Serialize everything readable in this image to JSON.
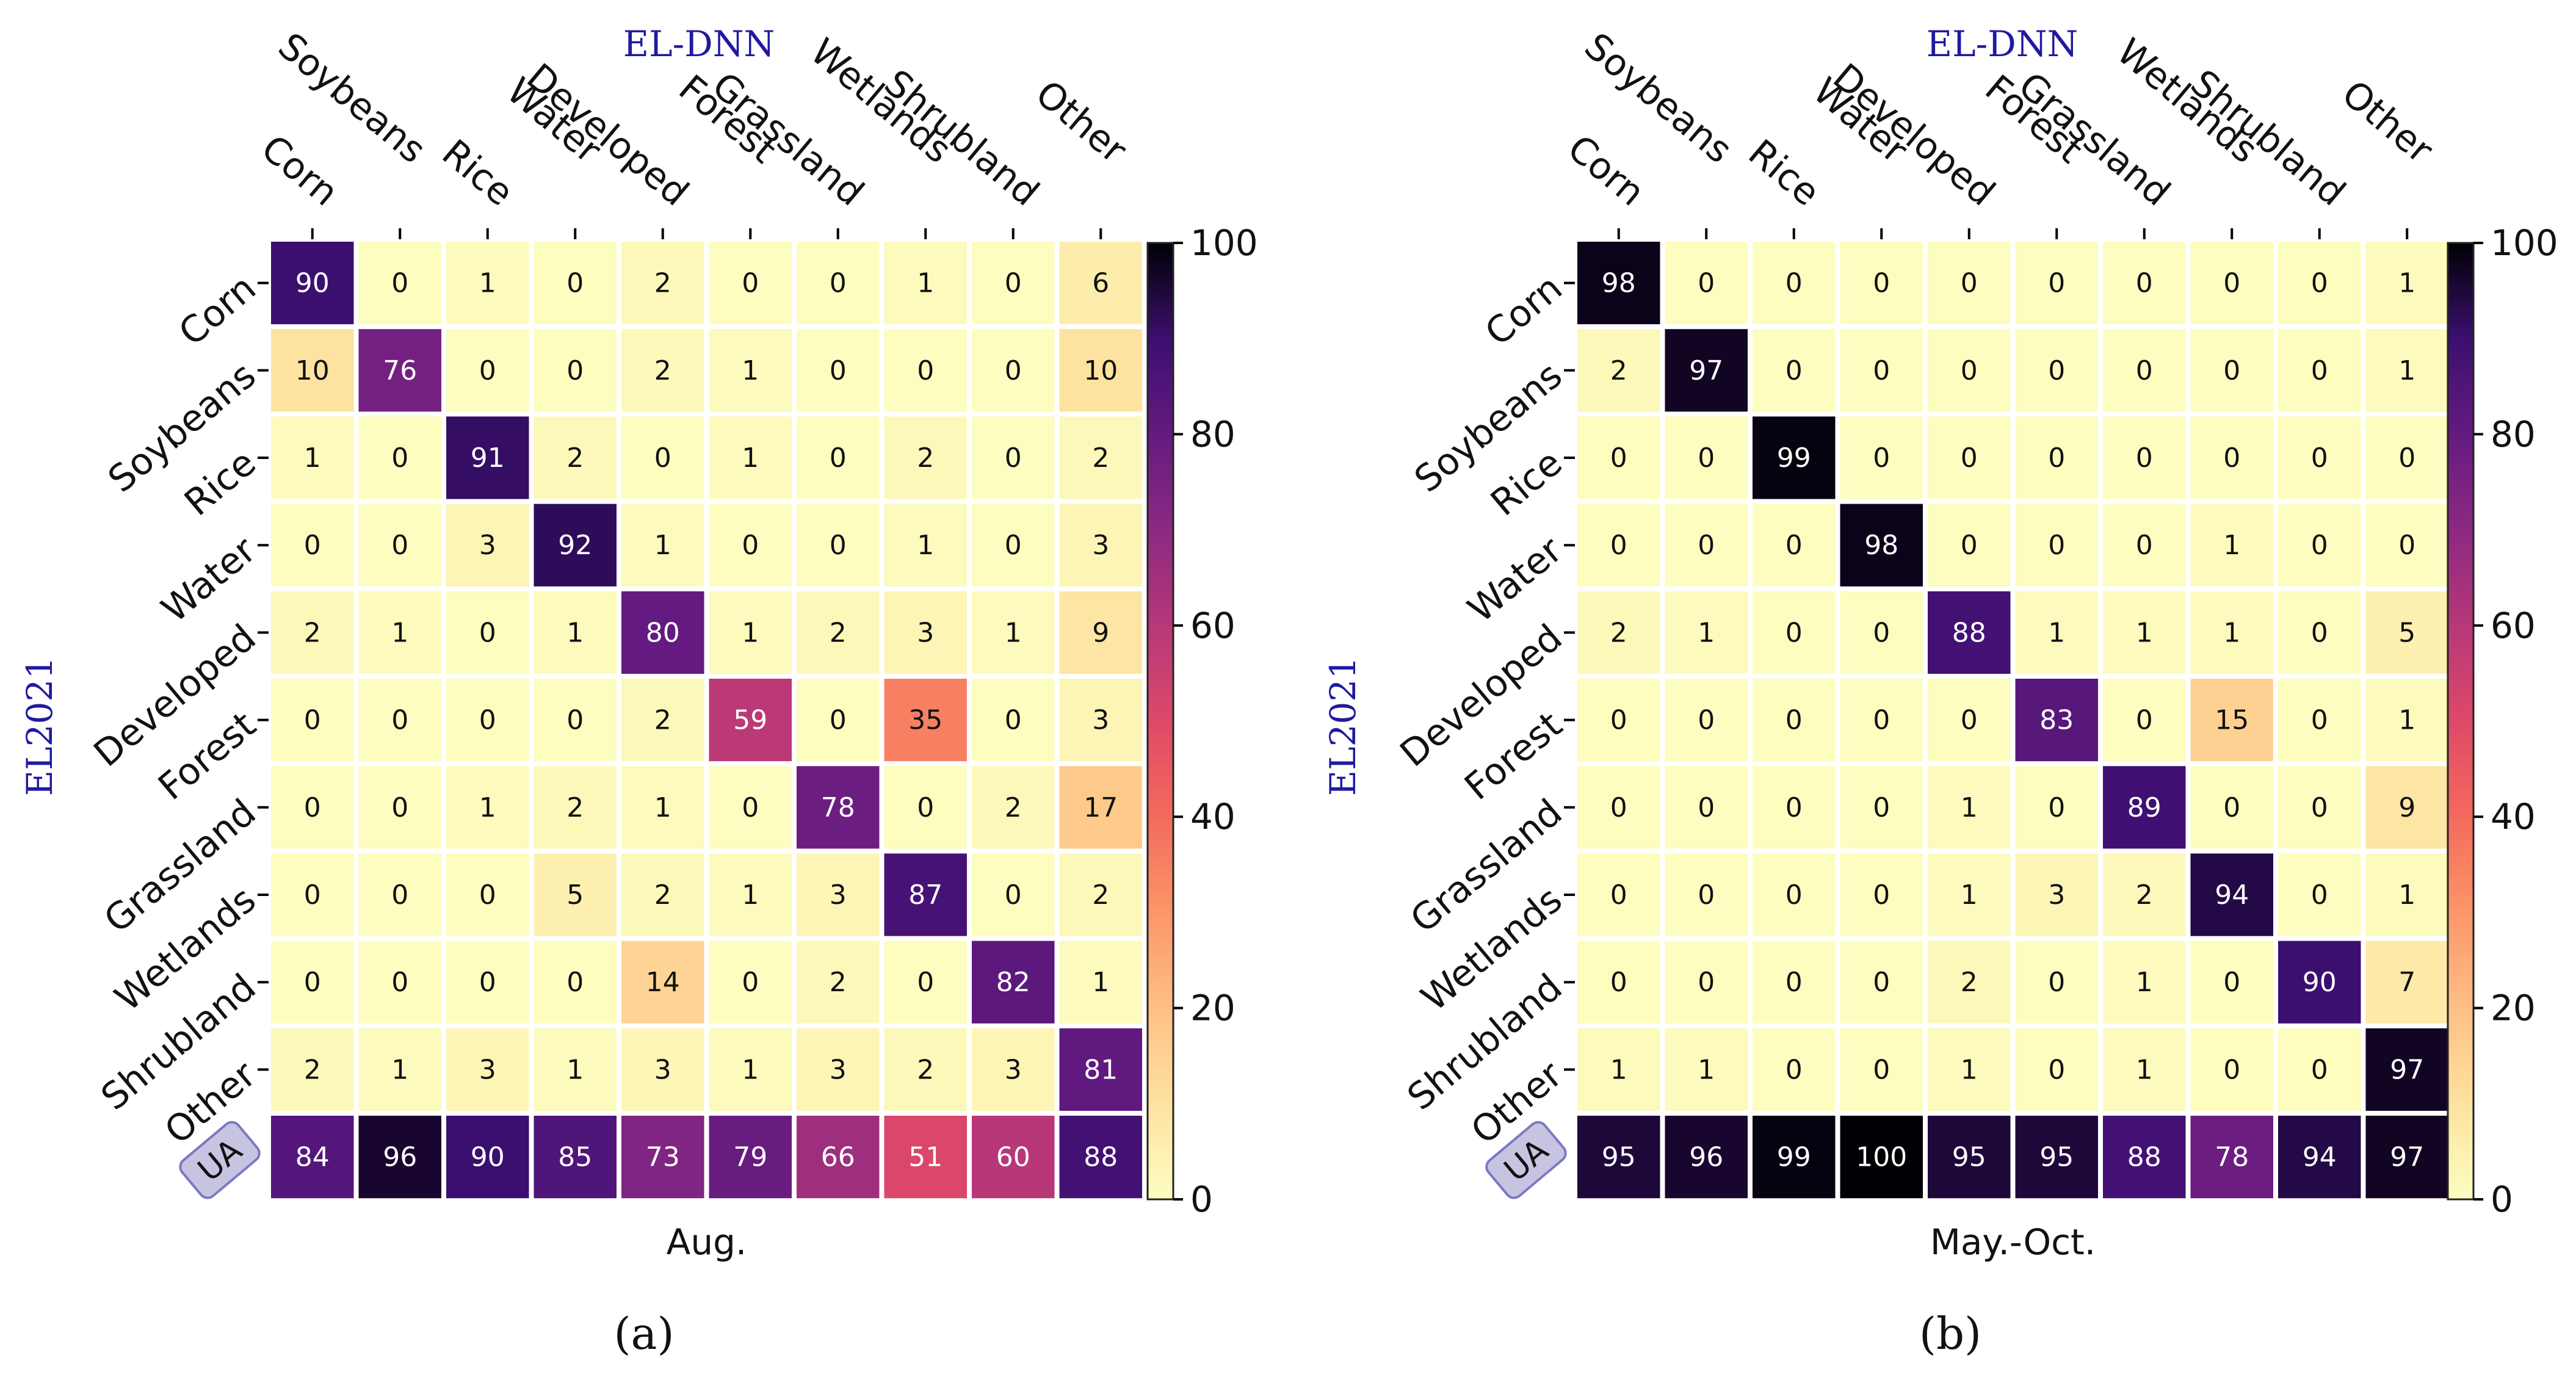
{
  "chart_data": [
    {
      "type": "heatmap",
      "title": "EL-DNN",
      "ylabel": "EL2021",
      "xlabel": "Aug.",
      "panel_label": "(a)",
      "columns": [
        "Corn",
        "Soybeans",
        "Rice",
        "Water",
        "Developed",
        "Forest",
        "Grassland",
        "Wetlands",
        "Shrubland",
        "Other"
      ],
      "rows": [
        "Corn",
        "Soybeans",
        "Rice",
        "Water",
        "Developed",
        "Forest",
        "Grassland",
        "Wetlands",
        "Shrubland",
        "Other",
        "UA"
      ],
      "values": [
        [
          90,
          0,
          1,
          0,
          2,
          0,
          0,
          1,
          0,
          6
        ],
        [
          10,
          76,
          0,
          0,
          2,
          1,
          0,
          0,
          0,
          10
        ],
        [
          1,
          0,
          91,
          2,
          0,
          1,
          0,
          2,
          0,
          2
        ],
        [
          0,
          0,
          3,
          92,
          1,
          0,
          0,
          1,
          0,
          3
        ],
        [
          2,
          1,
          0,
          1,
          80,
          1,
          2,
          3,
          1,
          9
        ],
        [
          0,
          0,
          0,
          0,
          2,
          59,
          0,
          35,
          0,
          3
        ],
        [
          0,
          0,
          1,
          2,
          1,
          0,
          78,
          0,
          2,
          17
        ],
        [
          0,
          0,
          0,
          5,
          2,
          1,
          3,
          87,
          0,
          2
        ],
        [
          0,
          0,
          0,
          0,
          14,
          0,
          2,
          0,
          82,
          1
        ],
        [
          2,
          1,
          3,
          1,
          3,
          1,
          3,
          2,
          3,
          81
        ],
        [
          84,
          96,
          90,
          85,
          73,
          79,
          66,
          51,
          60,
          88
        ]
      ],
      "colorbar": {
        "range": [
          0,
          100
        ],
        "ticks": [
          0,
          20,
          40,
          60,
          80,
          100
        ],
        "cmap": "magma_r"
      }
    },
    {
      "type": "heatmap",
      "title": "EL-DNN",
      "ylabel": "EL2021",
      "xlabel": "May.-Oct.",
      "panel_label": "(b)",
      "columns": [
        "Corn",
        "Soybeans",
        "Rice",
        "Water",
        "Developed",
        "Forest",
        "Grassland",
        "Wetlands",
        "Shrubland",
        "Other"
      ],
      "rows": [
        "Corn",
        "Soybeans",
        "Rice",
        "Water",
        "Developed",
        "Forest",
        "Grassland",
        "Wetlands",
        "Shrubland",
        "Other",
        "UA"
      ],
      "values": [
        [
          98,
          0,
          0,
          0,
          0,
          0,
          0,
          0,
          0,
          1
        ],
        [
          2,
          97,
          0,
          0,
          0,
          0,
          0,
          0,
          0,
          1
        ],
        [
          0,
          0,
          99,
          0,
          0,
          0,
          0,
          0,
          0,
          0
        ],
        [
          0,
          0,
          0,
          98,
          0,
          0,
          0,
          1,
          0,
          0
        ],
        [
          2,
          1,
          0,
          0,
          88,
          1,
          1,
          1,
          0,
          5
        ],
        [
          0,
          0,
          0,
          0,
          0,
          83,
          0,
          15,
          0,
          1
        ],
        [
          0,
          0,
          0,
          0,
          1,
          0,
          89,
          0,
          0,
          9
        ],
        [
          0,
          0,
          0,
          0,
          1,
          3,
          2,
          94,
          0,
          1
        ],
        [
          0,
          0,
          0,
          0,
          2,
          0,
          1,
          0,
          90,
          7
        ],
        [
          1,
          1,
          0,
          0,
          1,
          0,
          1,
          0,
          0,
          97
        ],
        [
          95,
          96,
          99,
          100,
          95,
          95,
          88,
          78,
          94,
          97
        ]
      ],
      "colorbar": {
        "range": [
          0,
          100
        ],
        "ticks": [
          0,
          20,
          40,
          60,
          80,
          100
        ],
        "cmap": "magma_r"
      }
    }
  ]
}
